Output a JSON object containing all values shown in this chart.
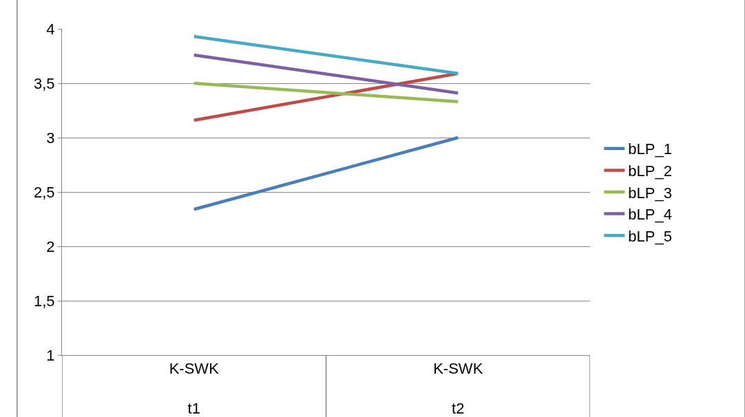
{
  "chart_data": {
    "type": "line",
    "categories": [
      "K-SWK\nt1",
      "K-SWK\nt2"
    ],
    "series": [
      {
        "name": "bLP_1",
        "color": "#4a7ebb",
        "values": [
          2.34,
          3.0
        ]
      },
      {
        "name": "bLP_2",
        "color": "#be4b48",
        "values": [
          3.16,
          3.59
        ]
      },
      {
        "name": "bLP_3",
        "color": "#98b954",
        "values": [
          3.5,
          3.33
        ]
      },
      {
        "name": "bLP_4",
        "color": "#7d60a0",
        "values": [
          3.76,
          3.41
        ]
      },
      {
        "name": "bLP_5",
        "color": "#46aac5",
        "values": [
          3.93,
          3.59
        ]
      }
    ],
    "ylim": [
      1,
      4
    ],
    "yticks": [
      {
        "value": 1,
        "label": "1"
      },
      {
        "value": 1.5,
        "label": "1,5"
      },
      {
        "value": 2,
        "label": "2"
      },
      {
        "value": 2.5,
        "label": "2,5"
      },
      {
        "value": 3,
        "label": "3"
      },
      {
        "value": 3.5,
        "label": "3,5"
      },
      {
        "value": 4,
        "label": "4"
      }
    ],
    "grid": "y",
    "legend": "right",
    "marker": "none",
    "line_style": "solid"
  }
}
